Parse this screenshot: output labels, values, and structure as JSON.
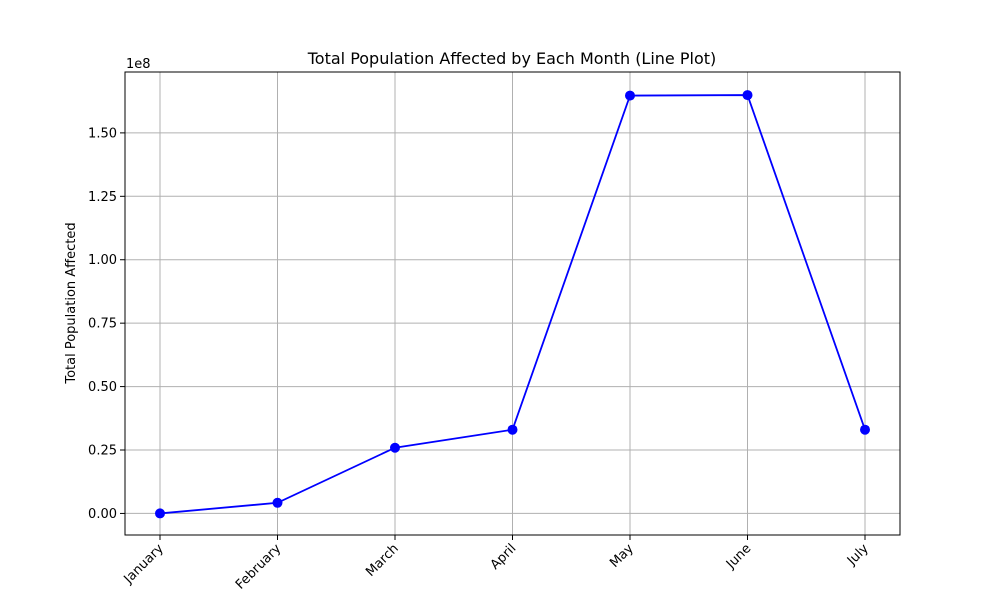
{
  "chart_data": {
    "type": "line",
    "title": "Total Population Affected by Each Month (Line Plot)",
    "xlabel": "",
    "ylabel": "Total Population Affected",
    "y_offset_label": "1e8",
    "categories": [
      "January",
      "February",
      "March",
      "April",
      "May",
      "June",
      "July"
    ],
    "series": [
      {
        "values": [
          0,
          4200000,
          25900000,
          33000000,
          164700000,
          164900000,
          33000000
        ],
        "color": "#0000ff",
        "marker": "circle"
      }
    ],
    "ylim": [
      -8500000,
      174000000
    ],
    "yticks": [
      0,
      25000000,
      50000000,
      75000000,
      100000000,
      125000000,
      150000000
    ],
    "ytick_labels": [
      "0.00",
      "0.25",
      "0.50",
      "0.75",
      "1.00",
      "1.25",
      "1.50"
    ],
    "grid": true,
    "xtick_rotation_deg": 45,
    "colors": {
      "grid": "#b0b0b0",
      "axes": "#000000",
      "line": "#0000ff"
    }
  }
}
